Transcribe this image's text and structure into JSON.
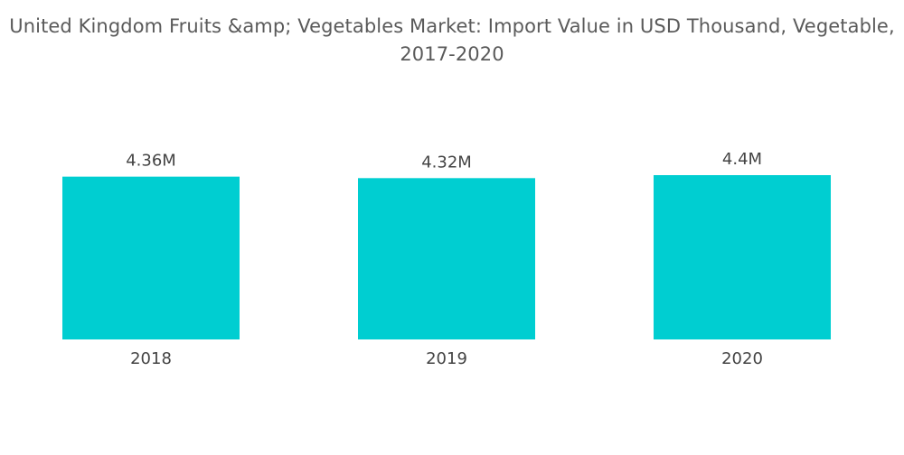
{
  "title_lines": [
    "United Kingdom Fruits &amp; Vegetables Market: Import Value in USD Thousand, Vegetable,",
    "2017-2020"
  ],
  "colors": {
    "bar": "#00CED1",
    "text": "#444444",
    "title": "#5a5a5a"
  },
  "chart_data": {
    "type": "bar",
    "title": "United Kingdom Fruits &amp; Vegetables Market: Import Value in USD Thousand, Vegetable, 2017-2020",
    "categories": [
      "2018",
      "2019",
      "2020"
    ],
    "values": [
      4.36,
      4.32,
      4.4
    ],
    "value_labels": [
      "4.36M",
      "4.32M",
      "4.4M"
    ],
    "xlabel": "",
    "ylabel": "",
    "grid": false,
    "legend": "none"
  }
}
